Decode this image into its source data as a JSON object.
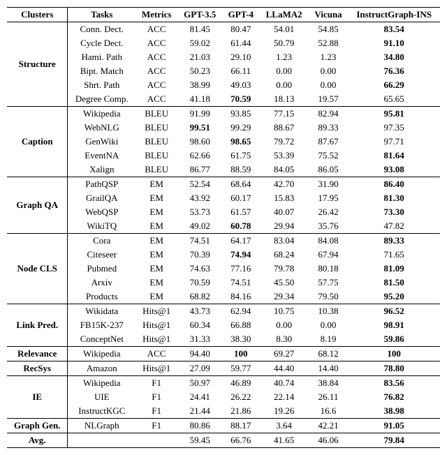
{
  "columns": [
    "Clusters",
    "Tasks",
    "Metrics",
    "GPT-3.5",
    "GPT-4",
    "LLaMA2",
    "Vicuna",
    "InstructGraph-INS"
  ],
  "clusters": [
    {
      "name": "Structure",
      "rows": [
        {
          "task": "Conn. Dect.",
          "metric": "ACC",
          "vals": [
            "81.45",
            "80.47",
            "54.01",
            "54.85",
            "83.54"
          ],
          "bold": [
            false,
            false,
            false,
            false,
            true
          ]
        },
        {
          "task": "Cycle Dect.",
          "metric": "ACC",
          "vals": [
            "59.02",
            "61.44",
            "50.79",
            "52.88",
            "91.10"
          ],
          "bold": [
            false,
            false,
            false,
            false,
            true
          ]
        },
        {
          "task": "Hami. Path",
          "metric": "ACC",
          "vals": [
            "21.03",
            "29.10",
            "1.23",
            "1.23",
            "34.80"
          ],
          "bold": [
            false,
            false,
            false,
            false,
            true
          ]
        },
        {
          "task": "Bipt. Match",
          "metric": "ACC",
          "vals": [
            "50.23",
            "66.11",
            "0.00",
            "0.00",
            "76.36"
          ],
          "bold": [
            false,
            false,
            false,
            false,
            true
          ]
        },
        {
          "task": "Shrt. Path",
          "metric": "ACC",
          "vals": [
            "38.99",
            "49.03",
            "0.00",
            "0.00",
            "66.29"
          ],
          "bold": [
            false,
            false,
            false,
            false,
            true
          ]
        },
        {
          "task": "Degree Comp.",
          "metric": "ACC",
          "vals": [
            "41.18",
            "70.59",
            "18.13",
            "19.57",
            "65.65"
          ],
          "bold": [
            false,
            true,
            false,
            false,
            false
          ]
        }
      ]
    },
    {
      "name": "Caption",
      "rows": [
        {
          "task": "Wikipedia",
          "metric": "BLEU",
          "vals": [
            "91.99",
            "93.85",
            "77.15",
            "82.94",
            "95.81"
          ],
          "bold": [
            false,
            false,
            false,
            false,
            true
          ]
        },
        {
          "task": "WebNLG",
          "metric": "BLEU",
          "vals": [
            "99.51",
            "99.29",
            "88.67",
            "89.33",
            "97.35"
          ],
          "bold": [
            true,
            false,
            false,
            false,
            false
          ]
        },
        {
          "task": "GenWiki",
          "metric": "BLEU",
          "vals": [
            "98.60",
            "98.65",
            "79.72",
            "87.67",
            "97.71"
          ],
          "bold": [
            false,
            true,
            false,
            false,
            false
          ]
        },
        {
          "task": "EventNA",
          "metric": "BLEU",
          "vals": [
            "62.66",
            "61.75",
            "53.39",
            "75.52",
            "81.64"
          ],
          "bold": [
            false,
            false,
            false,
            false,
            true
          ]
        },
        {
          "task": "Xalign",
          "metric": "BLEU",
          "vals": [
            "86.77",
            "88.59",
            "84.05",
            "86.05",
            "93.08"
          ],
          "bold": [
            false,
            false,
            false,
            false,
            true
          ]
        }
      ]
    },
    {
      "name": "Graph QA",
      "rows": [
        {
          "task": "PathQSP",
          "metric": "EM",
          "vals": [
            "52.54",
            "68.64",
            "42.70",
            "31.90",
            "86.40"
          ],
          "bold": [
            false,
            false,
            false,
            false,
            true
          ]
        },
        {
          "task": "GrailQA",
          "metric": "EM",
          "vals": [
            "43.92",
            "60.17",
            "15.83",
            "17.95",
            "81.30"
          ],
          "bold": [
            false,
            false,
            false,
            false,
            true
          ]
        },
        {
          "task": "WebQSP",
          "metric": "EM",
          "vals": [
            "53.73",
            "61.57",
            "40.07",
            "26.42",
            "73.30"
          ],
          "bold": [
            false,
            false,
            false,
            false,
            true
          ]
        },
        {
          "task": "WikiTQ",
          "metric": "EM",
          "vals": [
            "49.02",
            "60.78",
            "29.94",
            "35.76",
            "47.82"
          ],
          "bold": [
            false,
            true,
            false,
            false,
            false
          ]
        }
      ]
    },
    {
      "name": "Node CLS",
      "rows": [
        {
          "task": "Cora",
          "metric": "EM",
          "vals": [
            "74.51",
            "64.17",
            "83.04",
            "84.08",
            "89.33"
          ],
          "bold": [
            false,
            false,
            false,
            false,
            true
          ]
        },
        {
          "task": "Citeseer",
          "metric": "EM",
          "vals": [
            "70.39",
            "74.94",
            "68.24",
            "67.94",
            "71.65"
          ],
          "bold": [
            false,
            true,
            false,
            false,
            false
          ]
        },
        {
          "task": "Pubmed",
          "metric": "EM",
          "vals": [
            "74.63",
            "77.16",
            "79.78",
            "80.18",
            "81.09"
          ],
          "bold": [
            false,
            false,
            false,
            false,
            true
          ]
        },
        {
          "task": "Arxiv",
          "metric": "EM",
          "vals": [
            "70.59",
            "74.51",
            "45.50",
            "57.75",
            "81.50"
          ],
          "bold": [
            false,
            false,
            false,
            false,
            true
          ]
        },
        {
          "task": "Products",
          "metric": "EM",
          "vals": [
            "68.82",
            "84.16",
            "29.34",
            "79.50",
            "95.20"
          ],
          "bold": [
            false,
            false,
            false,
            false,
            true
          ]
        }
      ]
    },
    {
      "name": "Link Pred.",
      "rows": [
        {
          "task": "Wikidata",
          "metric": "Hits@1",
          "vals": [
            "43.73",
            "62.94",
            "10.75",
            "10.38",
            "96.52"
          ],
          "bold": [
            false,
            false,
            false,
            false,
            true
          ]
        },
        {
          "task": "FB15K-237",
          "metric": "Hits@1",
          "vals": [
            "60.34",
            "66.88",
            "0.00",
            "0.00",
            "98.91"
          ],
          "bold": [
            false,
            false,
            false,
            false,
            true
          ]
        },
        {
          "task": "ConceptNet",
          "metric": "Hits@1",
          "vals": [
            "31.33",
            "38.30",
            "8.30",
            "8.19",
            "59.86"
          ],
          "bold": [
            false,
            false,
            false,
            false,
            true
          ]
        }
      ]
    },
    {
      "name": "Relevance",
      "rows": [
        {
          "task": "Wikipedia",
          "metric": "ACC",
          "vals": [
            "94.40",
            "100",
            "69.27",
            "68.12",
            "100"
          ],
          "bold": [
            false,
            true,
            false,
            false,
            true
          ]
        }
      ]
    },
    {
      "name": "RecSys",
      "rows": [
        {
          "task": "Amazon",
          "metric": "Hits@1",
          "vals": [
            "27.09",
            "59.77",
            "44.40",
            "14.40",
            "78.80"
          ],
          "bold": [
            false,
            false,
            false,
            false,
            true
          ]
        }
      ]
    },
    {
      "name": "IE",
      "rows": [
        {
          "task": "Wikipedia",
          "metric": "F1",
          "vals": [
            "50.97",
            "46.89",
            "40.74",
            "38.84",
            "83.56"
          ],
          "bold": [
            false,
            false,
            false,
            false,
            true
          ]
        },
        {
          "task": "UIE",
          "metric": "F1",
          "vals": [
            "24.41",
            "26.22",
            "22.14",
            "26.11",
            "76.82"
          ],
          "bold": [
            false,
            false,
            false,
            false,
            true
          ]
        },
        {
          "task": "InstructKGC",
          "metric": "F1",
          "vals": [
            "21.44",
            "21.86",
            "19.26",
            "16.6",
            "38.98"
          ],
          "bold": [
            false,
            false,
            false,
            false,
            true
          ]
        }
      ]
    },
    {
      "name": "Graph Gen.",
      "rows": [
        {
          "task": "NLGraph",
          "metric": "F1",
          "vals": [
            "80.86",
            "88.17",
            "3.64",
            "42.21",
            "91.05"
          ],
          "bold": [
            false,
            false,
            false,
            false,
            true
          ]
        }
      ]
    },
    {
      "name": "Avg.",
      "rows": [
        {
          "task": "",
          "metric": "",
          "vals": [
            "59.45",
            "66.76",
            "41.65",
            "46.06",
            "79.84"
          ],
          "bold": [
            false,
            false,
            false,
            false,
            true
          ]
        }
      ]
    }
  ]
}
